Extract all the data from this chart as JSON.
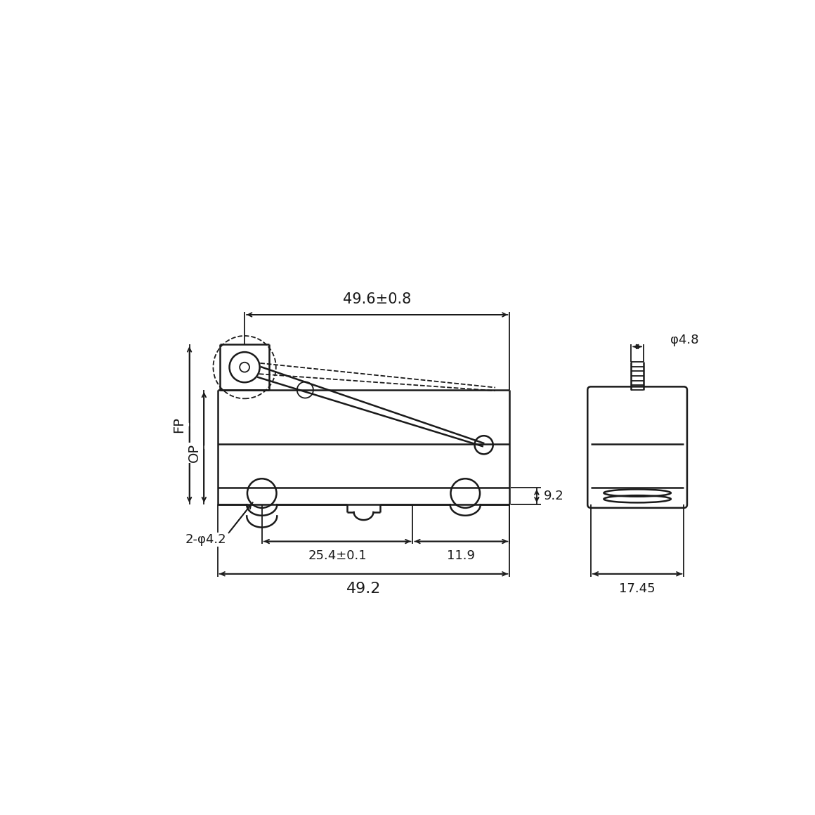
{
  "bg_color": "#ffffff",
  "lc": "#1a1a1a",
  "lw": 1.8,
  "lw2": 1.3,
  "dims": {
    "w_tol": "49.6±0.8",
    "body_w": "49.2",
    "hole_sp": "25.4±0.1",
    "right_off": "11.9",
    "tab_h": "9.2",
    "hole_dia": "2-φ4.2",
    "pin_dia": "φ4.8",
    "side_w": "17.45",
    "FP": "FP",
    "OP": "OP"
  }
}
